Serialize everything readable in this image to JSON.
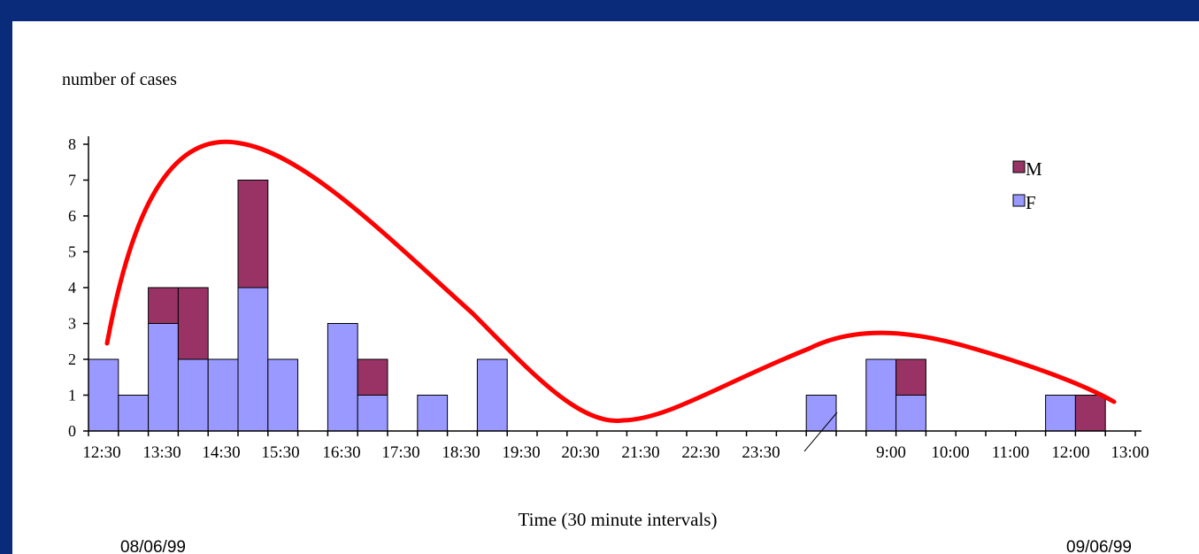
{
  "colors": {
    "background": "#0a2a7a",
    "bar_m": "#993366",
    "bar_f": "#9999ff",
    "curve": "#ff0000"
  },
  "chart_data": {
    "type": "bar",
    "stacked": true,
    "ylabel": "number  of cases",
    "xlabel": "Time (30 minute intervals)",
    "ylim": [
      0,
      8
    ],
    "yticks": [
      0,
      1,
      2,
      3,
      4,
      5,
      6,
      7,
      8
    ],
    "xtick_labels": [
      "12:30",
      "13:30",
      "14:30",
      "15:30",
      "16:30",
      "17:30",
      "18:30",
      "19:30",
      "20:30",
      "21:30",
      "22:30",
      "23:30",
      "9:00",
      "10:00",
      "11:00",
      "12:00",
      "13:00"
    ],
    "date_labels": [
      "08/06/99",
      "09/06/99"
    ],
    "legend": {
      "position": "top-right",
      "entries": [
        "M",
        "F"
      ]
    },
    "axis_break": "between 23:30 and 9:00",
    "series": [
      {
        "name": "M",
        "values": [
          0,
          0,
          1,
          2,
          0,
          3,
          0,
          0,
          0,
          1,
          0,
          0,
          0,
          0,
          0,
          0,
          0,
          0,
          0,
          0,
          0,
          0,
          0,
          0,
          0,
          0,
          0,
          1,
          0,
          0,
          0,
          0,
          0,
          1
        ]
      },
      {
        "name": "F",
        "values": [
          2,
          1,
          3,
          2,
          2,
          4,
          2,
          0,
          3,
          1,
          0,
          1,
          0,
          2,
          0,
          0,
          0,
          0,
          0,
          0,
          0,
          0,
          0,
          0,
          1,
          0,
          2,
          1,
          0,
          0,
          0,
          0,
          1,
          0
        ]
      }
    ],
    "annotation": "smoothed epidemic curve (red)"
  }
}
